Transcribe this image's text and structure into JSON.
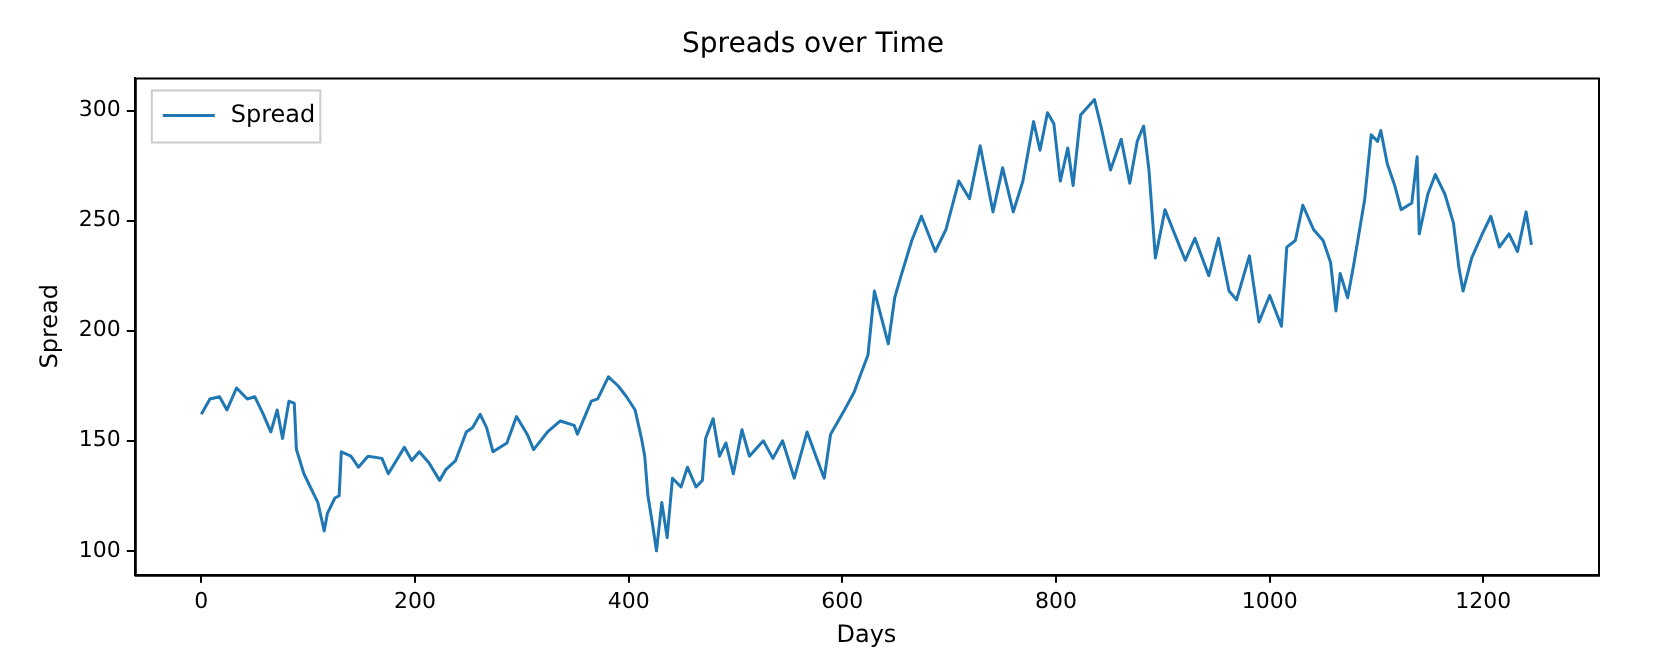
{
  "chart_data": {
    "type": "line",
    "title": "Spreads over Time",
    "xlabel": "Days",
    "ylabel": "Spread",
    "legend": "top left",
    "grid": false,
    "marker": "none",
    "line_style": "solid",
    "xlim": [
      -62.3,
      1307.3
    ],
    "xticks": [
      0,
      200,
      400,
      600,
      800,
      1000,
      1200
    ],
    "ylim": [
      89.1,
      315
    ],
    "yticks": [
      100,
      150,
      200,
      250,
      300
    ],
    "series": [
      {
        "name": "Spread",
        "color": "#1f77b4",
        "x": [
          0,
          8,
          17,
          24,
          33,
          43,
          50,
          58,
          65,
          71,
          76,
          82,
          87,
          89,
          96,
          102,
          109,
          115,
          118,
          125,
          129,
          131,
          140,
          147,
          156,
          169,
          175,
          190,
          197,
          204,
          213,
          223,
          229,
          238,
          248,
          254,
          261,
          267,
          273,
          286,
          295,
          305,
          311,
          324,
          336,
          349,
          352,
          365,
          371,
          381,
          390,
          398,
          406,
          412,
          415,
          418,
          422,
          426,
          431,
          436,
          441,
          449,
          455,
          463,
          469,
          472,
          479,
          485,
          491,
          498,
          506,
          513,
          526,
          535,
          544,
          555,
          567,
          576,
          583,
          589,
          602,
          611,
          617,
          624,
          630,
          636,
          643,
          649,
          655,
          665,
          674,
          687,
          697,
          709,
          719,
          729,
          741,
          750,
          760,
          769,
          779,
          785,
          792,
          798,
          804,
          811,
          816,
          823,
          836,
          842,
          851,
          861,
          869,
          876,
          882,
          887,
          893,
          902,
          911,
          921,
          930,
          943,
          952,
          962,
          969,
          981,
          990,
          1000,
          1011,
          1016,
          1024,
          1031,
          1041,
          1050,
          1057,
          1062,
          1066,
          1073,
          1079,
          1089,
          1095,
          1101,
          1104,
          1110,
          1117,
          1123,
          1133,
          1138,
          1140,
          1148,
          1155,
          1164,
          1172,
          1177,
          1181,
          1189,
          1199,
          1207,
          1215,
          1224,
          1232,
          1240,
          1245
        ],
        "values": [
          162,
          169,
          170,
          164,
          174,
          169,
          170,
          162,
          154,
          164,
          151,
          168,
          167,
          146,
          135,
          129,
          122,
          109,
          117,
          124,
          125,
          145,
          143,
          138,
          143,
          142,
          135,
          147,
          141,
          145,
          140,
          132,
          137,
          141,
          154,
          156,
          162,
          156,
          145,
          149,
          161,
          153,
          146,
          154,
          159,
          157,
          153,
          168,
          169,
          179,
          175,
          170,
          164,
          151,
          143,
          125,
          113,
          100,
          122,
          106,
          133,
          129,
          138,
          129,
          132,
          151,
          160,
          143,
          149,
          135,
          155,
          143,
          150,
          142,
          150,
          133,
          154,
          142,
          133,
          153,
          164,
          172,
          180,
          189,
          218,
          207,
          194,
          215,
          225,
          241,
          252,
          236,
          246,
          268,
          260,
          284,
          254,
          274,
          254,
          268,
          295,
          282,
          299,
          294,
          268,
          283,
          266,
          298,
          305,
          293,
          273,
          287,
          267,
          286,
          293,
          273,
          233,
          255,
          244,
          232,
          242,
          225,
          242,
          218,
          214,
          234,
          204,
          216,
          202,
          238,
          241,
          257,
          246,
          241,
          231,
          209,
          226,
          215,
          231,
          260,
          289,
          286,
          291,
          276,
          266,
          255,
          258,
          279,
          244,
          262,
          271,
          262,
          249,
          229,
          218,
          233,
          244,
          252,
          238,
          244,
          236,
          254,
          239
        ]
      }
    ]
  }
}
